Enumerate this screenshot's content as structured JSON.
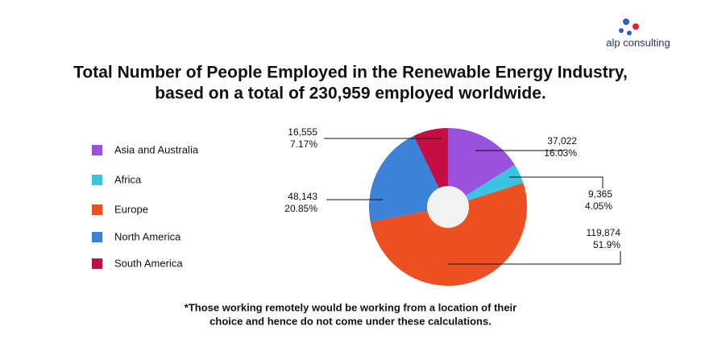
{
  "logo": "alp consulting",
  "chart_data": {
    "type": "donut",
    "title": "Total Number of People Employed in the Renewable Energy Industry,",
    "subtitle": "based on a total of 230,959 employed worldwide.",
    "categories": [
      "Asia and Australia",
      "Africa",
      "Europe",
      "North America",
      "South America"
    ],
    "values": [
      37022,
      9365,
      119874,
      48143,
      16555
    ],
    "value_labels": [
      "37,022",
      "9,365",
      "119,874",
      "48,143",
      "16,555"
    ],
    "percent_labels": [
      "16.03%",
      "4.05%",
      "51.9%",
      "20.85%",
      "7.17%"
    ],
    "colors": [
      "#9a52dc",
      "#3cc3e2",
      "#ec4f22",
      "#3b82d8",
      "#c50f42"
    ],
    "annotations": [
      "*Those working remotely would be working from a location of their",
      "choice and hence do not come under these calculations."
    ]
  }
}
